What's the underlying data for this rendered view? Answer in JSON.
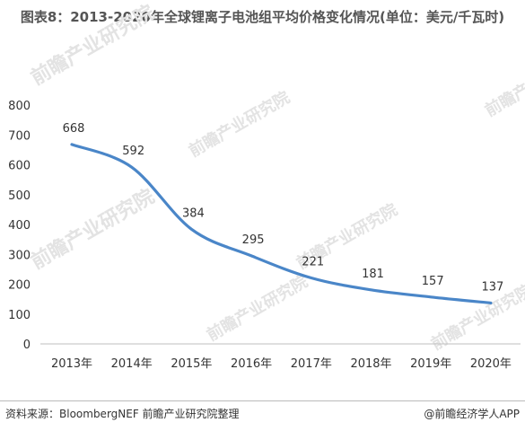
{
  "chart_data": {
    "type": "line",
    "title": "图表8：2013-2020年全球锂离子电池组平均价格变化情况(单位：美元/千瓦时)",
    "categories": [
      "2013年",
      "2014年",
      "2015年",
      "2016年",
      "2017年",
      "2018年",
      "2019年",
      "2020年"
    ],
    "series": [
      {
        "values": [
          668,
          592,
          384,
          295,
          221,
          181,
          157,
          137
        ]
      }
    ],
    "y_ticks": [
      "0",
      "100",
      "200",
      "300",
      "400",
      "500",
      "600",
      "700",
      "800"
    ],
    "ylim": [
      0,
      800
    ],
    "grid": false,
    "line_color": "#4a86c8"
  },
  "footer": {
    "source": "资料来源：BloombergNEF 前瞻产业研究院整理",
    "credit": "@前瞻经济学人APP"
  },
  "watermark": {
    "text": "前瞻产业研究院"
  }
}
